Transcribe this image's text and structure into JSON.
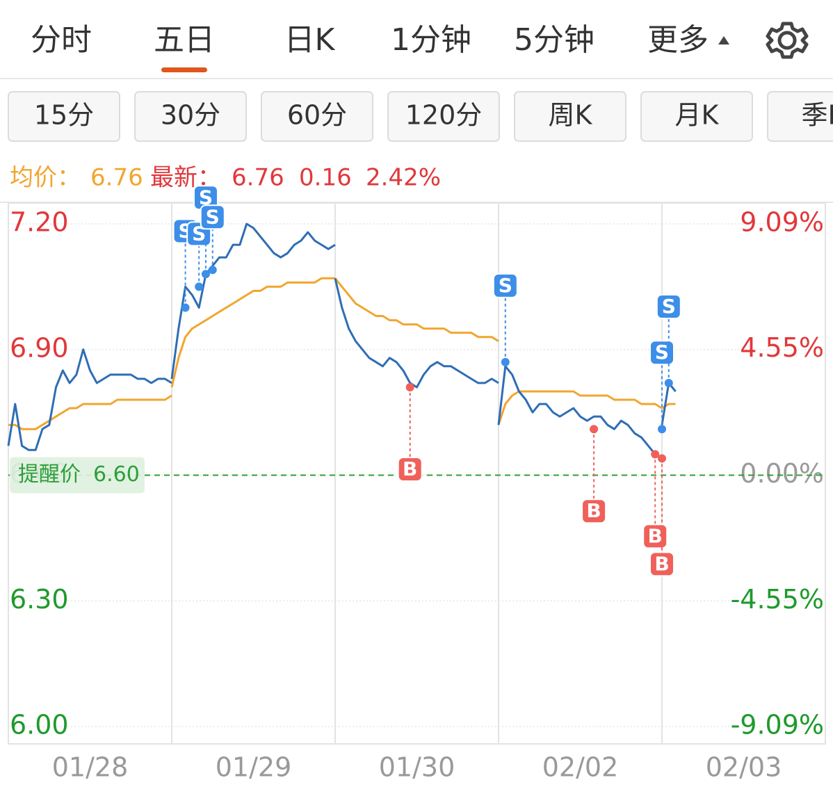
{
  "tabs": [
    "分时",
    "五日",
    "日K",
    "1分钟",
    "5分钟",
    "更多"
  ],
  "active_tab": 1,
  "subtabs": [
    "15分",
    "30分",
    "60分",
    "120分",
    "周K",
    "月K",
    "季K"
  ],
  "info": {
    "avg_label": "均价：",
    "avg": 6.76,
    "last_label": "最新：",
    "last": 6.76,
    "change": 0.16,
    "change_pct": 2.42,
    "change_pct_label": "2.42%"
  },
  "alert": {
    "label": "提醒价",
    "value": 6.6,
    "value_label": "6.60",
    "color": "#2e9e3a"
  },
  "chart_data": {
    "type": "line",
    "categories": [
      "01/28",
      "01/29",
      "01/30",
      "02/02",
      "02/03"
    ],
    "series": [
      {
        "color": "#2f6db5",
        "values": [
          [
            6.67,
            6.77,
            6.67,
            6.66,
            6.66,
            6.71,
            6.72,
            6.81,
            6.85,
            6.82,
            6.84,
            6.9,
            6.85,
            6.82,
            6.83,
            6.84,
            6.84,
            6.84,
            6.84,
            6.83,
            6.83,
            6.82,
            6.83,
            6.83,
            6.82
          ],
          [
            6.83,
            6.95,
            7.05,
            7.03,
            7.0,
            7.08,
            7.1,
            7.12,
            7.12,
            7.15,
            7.15,
            7.2,
            7.19,
            7.17,
            7.15,
            7.13,
            7.12,
            7.13,
            7.15,
            7.16,
            7.18,
            7.16,
            7.15,
            7.14,
            7.15
          ],
          [
            7.07,
            7.0,
            6.95,
            6.92,
            6.9,
            6.88,
            6.87,
            6.86,
            6.88,
            6.87,
            6.85,
            6.82,
            6.81,
            6.84,
            6.86,
            6.87,
            6.86,
            6.86,
            6.85,
            6.84,
            6.83,
            6.82,
            6.82,
            6.83,
            6.82
          ],
          [
            6.72,
            6.86,
            6.84,
            6.8,
            6.78,
            6.75,
            6.77,
            6.77,
            6.75,
            6.74,
            6.75,
            6.76,
            6.74,
            6.73,
            6.74,
            6.74,
            6.72,
            6.71,
            6.73,
            6.72,
            6.7,
            6.69,
            6.67,
            6.65,
            6.64
          ],
          [
            6.72,
            6.82,
            6.8,
            null,
            null,
            null,
            null,
            null,
            null,
            null,
            null,
            null,
            null,
            null,
            null,
            null,
            null,
            null,
            null,
            null,
            null,
            null,
            null,
            null,
            null
          ]
        ]
      },
      {
        "color": "#f2a52e",
        "values": [
          [
            6.72,
            6.72,
            6.71,
            6.71,
            6.71,
            6.72,
            6.73,
            6.74,
            6.75,
            6.76,
            6.76,
            6.77,
            6.77,
            6.77,
            6.77,
            6.77,
            6.78,
            6.78,
            6.78,
            6.78,
            6.78,
            6.78,
            6.78,
            6.78,
            6.79
          ],
          [
            6.81,
            6.88,
            6.93,
            6.95,
            6.96,
            6.97,
            6.98,
            6.99,
            7.0,
            7.01,
            7.02,
            7.03,
            7.04,
            7.04,
            7.05,
            7.05,
            7.05,
            7.06,
            7.06,
            7.06,
            7.06,
            7.06,
            7.07,
            7.07,
            7.07
          ],
          [
            7.07,
            7.05,
            7.03,
            7.01,
            7.0,
            6.99,
            6.98,
            6.98,
            6.97,
            6.97,
            6.96,
            6.96,
            6.96,
            6.95,
            6.95,
            6.95,
            6.95,
            6.94,
            6.94,
            6.94,
            6.94,
            6.93,
            6.93,
            6.93,
            6.92
          ],
          [
            6.72,
            6.77,
            6.79,
            6.8,
            6.8,
            6.8,
            6.8,
            6.8,
            6.8,
            6.8,
            6.8,
            6.8,
            6.79,
            6.79,
            6.79,
            6.79,
            6.79,
            6.78,
            6.78,
            6.78,
            6.78,
            6.77,
            6.77,
            6.77,
            6.76
          ],
          [
            6.76,
            6.77,
            6.77,
            null,
            null,
            null,
            null,
            null,
            null,
            null,
            null,
            null,
            null,
            null,
            null,
            null,
            null,
            null,
            null,
            null,
            null,
            null,
            null,
            null,
            null
          ]
        ]
      }
    ],
    "ylim": [
      6.0,
      7.2
    ],
    "yticks": [
      {
        "value": 7.2,
        "label": "7.20"
      },
      {
        "value": 6.9,
        "label": "6.90"
      },
      {
        "value": 6.6,
        "label": "6.60"
      },
      {
        "value": 6.3,
        "label": "6.30"
      },
      {
        "value": 6.0,
        "label": "6.00"
      }
    ],
    "y2lim": [
      -9.09,
      9.09
    ],
    "y2ticks": [
      {
        "value": 9.09,
        "label": "9.09%"
      },
      {
        "value": 4.55,
        "label": "4.55%"
      },
      {
        "value": 0,
        "label": "0.00%"
      },
      {
        "value": -4.55,
        "label": "-4.55%"
      },
      {
        "value": -9.09,
        "label": "-9.09%"
      }
    ],
    "up_color": "#e0383b",
    "down_color": "#1f9a2c",
    "flat_color": "#9a9a9a",
    "markers": [
      {
        "type": "S",
        "day": 1,
        "point": 2,
        "price": 7.0
      },
      {
        "type": "S",
        "day": 1,
        "point": 4,
        "price": 7.05
      },
      {
        "type": "S",
        "day": 1,
        "point": 5,
        "price": 7.08
      },
      {
        "type": "S",
        "day": 1,
        "point": 6,
        "price": 7.09
      },
      {
        "type": "B",
        "day": 2,
        "point": 11,
        "price": 6.81
      },
      {
        "type": "S",
        "day": 3,
        "point": 1,
        "price": 6.87
      },
      {
        "type": "B",
        "day": 3,
        "point": 14,
        "price": 6.71
      },
      {
        "type": "B",
        "day": 3,
        "point": 23,
        "price": 6.65
      },
      {
        "type": "B",
        "day": 3,
        "point": 24,
        "price": 6.64
      },
      {
        "type": "S",
        "day": 4,
        "point": 0,
        "price": 6.71
      },
      {
        "type": "S",
        "day": 4,
        "point": 1,
        "price": 6.82
      }
    ]
  }
}
